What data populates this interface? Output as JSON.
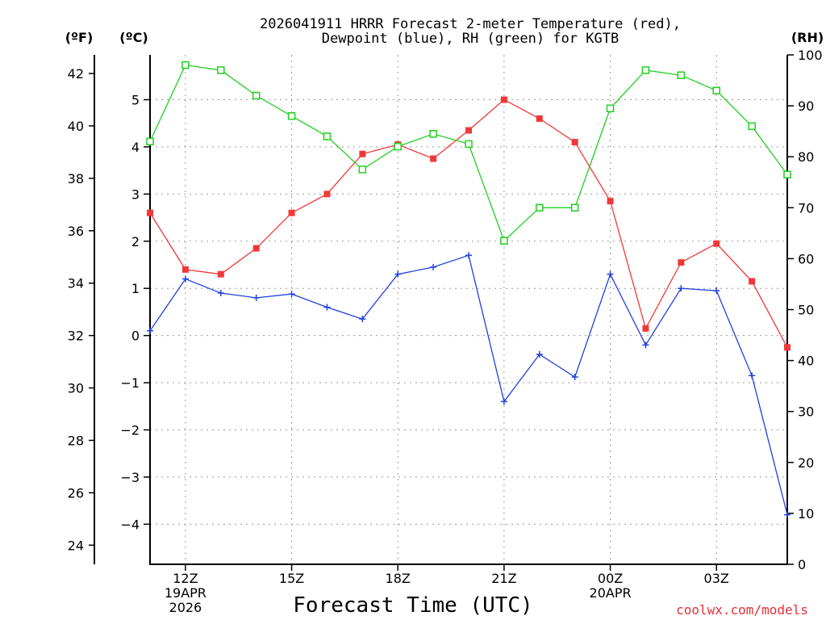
{
  "chart_data": {
    "type": "line",
    "title": [
      "2026041911 HRRR Forecast 2-meter Temperature (red),",
      "Dewpoint (blue), RH (green) for KGTB"
    ],
    "units": {
      "f": "(ºF)",
      "c": "(ºC)",
      "rh": "(RH)"
    },
    "xlabel": "Forecast Time (UTC)",
    "credit": "coolwx.com/models",
    "x_hours": [
      11,
      12,
      13,
      14,
      15,
      16,
      17,
      18,
      19,
      20,
      21,
      22,
      23,
      24,
      25,
      26,
      27,
      28,
      29
    ],
    "x_ticks": [
      {
        "hour": 12,
        "lines": [
          "12Z",
          "19APR",
          "2026"
        ]
      },
      {
        "hour": 15,
        "lines": [
          "15Z"
        ]
      },
      {
        "hour": 18,
        "lines": [
          "18Z"
        ]
      },
      {
        "hour": 21,
        "lines": [
          "21Z"
        ]
      },
      {
        "hour": 24,
        "lines": [
          "00Z",
          "20APR"
        ]
      },
      {
        "hour": 27,
        "lines": [
          "03Z"
        ]
      }
    ],
    "xlim": [
      11,
      29
    ],
    "ylim_c": [
      -4.85,
      5.95
    ],
    "ylim_rh": [
      0,
      100
    ],
    "y_ticks_c": [
      "5",
      "4",
      "3",
      "2",
      "1",
      "0",
      "−1",
      "−2",
      "−3",
      "−4"
    ],
    "y_ticks_c_values": [
      5,
      4,
      3,
      2,
      1,
      0,
      -1,
      -2,
      -3,
      -4
    ],
    "y_ticks_f": [
      "42",
      "40",
      "38",
      "36",
      "34",
      "32",
      "30",
      "28",
      "26",
      "24"
    ],
    "y_ticks_f_values": [
      42,
      40,
      38,
      36,
      34,
      32,
      30,
      28,
      26,
      24
    ],
    "y_ticks_rh": [
      "100",
      "90",
      "80",
      "70",
      "60",
      "50",
      "40",
      "30",
      "20",
      "10",
      "0"
    ],
    "y_ticks_rh_values": [
      100,
      90,
      80,
      70,
      60,
      50,
      40,
      30,
      20,
      10,
      0
    ],
    "series": [
      {
        "name": "Temperature",
        "axis": "c",
        "color": "#f03838",
        "marker": "filled-square",
        "values": [
          2.6,
          1.4,
          1.3,
          1.85,
          2.6,
          3.0,
          3.85,
          4.05,
          3.75,
          4.35,
          5.0,
          4.6,
          4.1,
          2.85,
          0.15,
          1.55,
          1.95,
          1.15,
          -0.25
        ]
      },
      {
        "name": "Dewpoint",
        "axis": "c",
        "color": "#2040e0",
        "marker": "plus",
        "values": [
          0.1,
          1.2,
          0.9,
          0.8,
          0.88,
          0.6,
          0.35,
          1.3,
          1.45,
          1.7,
          -1.4,
          -0.4,
          -0.88,
          1.3,
          -0.2,
          1.0,
          0.95,
          -0.85,
          -3.8
        ]
      },
      {
        "name": "RH",
        "axis": "rh",
        "color": "#20d020",
        "marker": "open-square",
        "values": [
          83,
          98,
          97,
          92,
          88,
          84,
          77.5,
          82,
          84.5,
          82.5,
          63.5,
          70,
          70,
          89.5,
          97,
          96,
          93,
          86,
          76.5
        ]
      }
    ]
  }
}
